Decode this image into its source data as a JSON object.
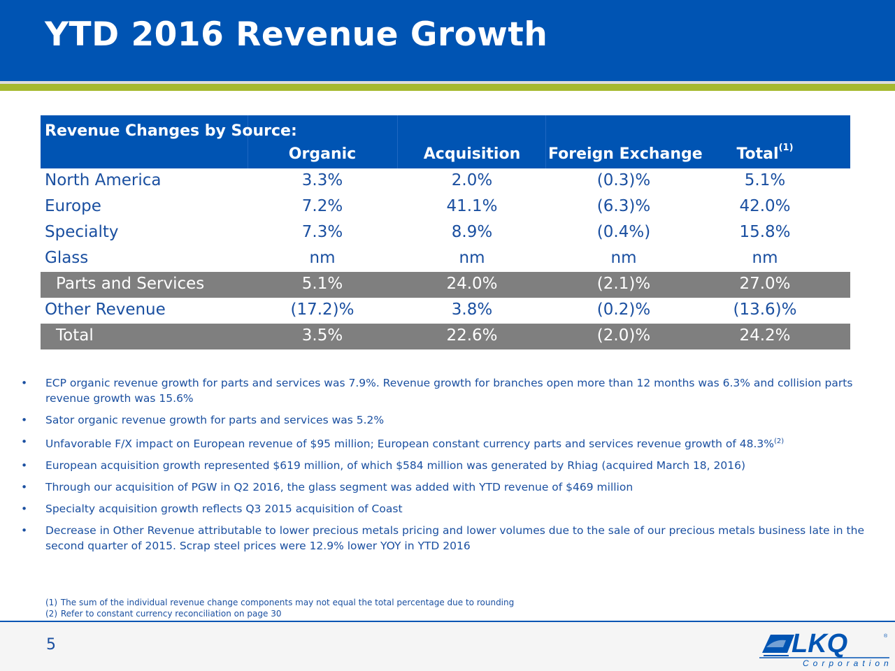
{
  "header": {
    "title": "YTD 2016 Revenue Growth"
  },
  "table": {
    "caption": "Revenue Changes by Source:",
    "columns": {
      "organic": "Organic",
      "acquisition": "Acquisition",
      "fx": "Foreign Exchange",
      "total": "Total",
      "total_note": "(1)"
    },
    "rows": [
      {
        "label": "North America",
        "organic": "3.3%",
        "acquisition": "2.0%",
        "fx": "(0.3)%",
        "total": "5.1%"
      },
      {
        "label": "Europe",
        "organic": "7.2%",
        "acquisition": "41.1%",
        "fx": "(6.3)%",
        "total": "42.0%"
      },
      {
        "label": "Specialty",
        "organic": "7.3%",
        "acquisition": "8.9%",
        "fx": "(0.4%)",
        "total": "15.8%"
      },
      {
        "label": "Glass",
        "organic": "nm",
        "acquisition": "nm",
        "fx": "nm",
        "total": "nm"
      },
      {
        "label": "Parts and Services",
        "organic": "5.1%",
        "acquisition": "24.0%",
        "fx": "(2.1)%",
        "total": "27.0%"
      },
      {
        "label": "Other Revenue",
        "organic": "(17.2)%",
        "acquisition": "3.8%",
        "fx": "(0.2)%",
        "total": "(13.6)%"
      },
      {
        "label": "Total",
        "organic": "3.5%",
        "acquisition": "22.6%",
        "fx": "(2.0)%",
        "total": "24.2%"
      }
    ]
  },
  "bullets": [
    "ECP organic revenue growth for parts and services was 7.9%. Revenue growth for branches open more than 12 months was 6.3% and collision parts revenue growth was 15.6%",
    "Sator organic revenue growth for parts and services was 5.2%",
    "Unfavorable F/X impact on European revenue of $95 million; European constant currency parts and services revenue growth of 48.3%",
    "European acquisition growth represented $619 million, of which $584 million was generated by Rhiag (acquired March 18, 2016)",
    "Through our acquisition of PGW in Q2 2016, the glass segment was added with YTD revenue of $469 million",
    "Specialty acquisition growth reflects Q3 2015 acquisition of Coast",
    "Decrease in Other Revenue attributable to lower precious metals pricing and lower volumes due to the sale of our precious metals business late in the second quarter of 2015. Scrap steel prices were 12.9% lower YOY in YTD 2016"
  ],
  "bullet_note": "(2)",
  "bullet_mark": "•",
  "footnotes": [
    {
      "num": "(1)",
      "text": "The sum of the individual revenue change components may not equal the total percentage due to rounding"
    },
    {
      "num": "(2)",
      "text": "Refer to constant currency reconciliation on page 30"
    }
  ],
  "footer": {
    "page_number": "5",
    "logo_text": "LKQ",
    "logo_subtext": "Corporation"
  },
  "colors": {
    "brand_blue": "#0054b3",
    "accent_green": "#a5b92e",
    "subtotal_gray": "#7f7f7f",
    "text_blue": "#1a4fa0"
  }
}
